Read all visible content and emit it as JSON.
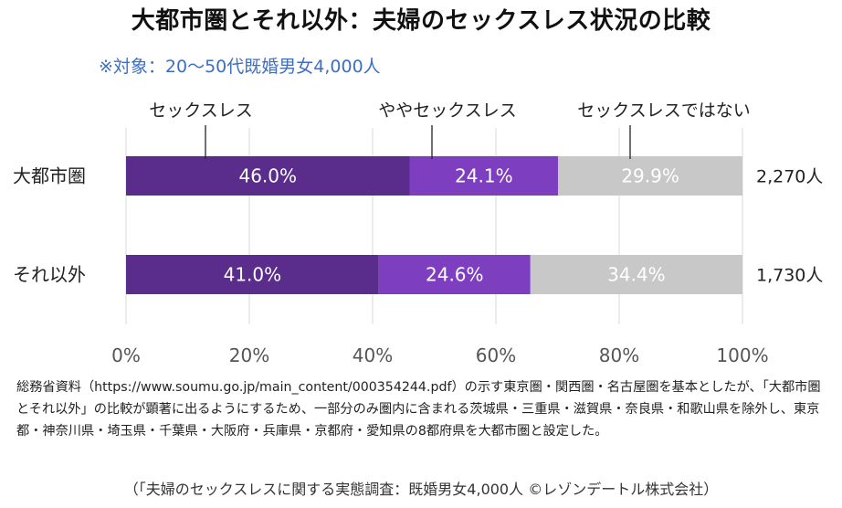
{
  "title": "大都市圏とそれ以外：夫婦のセックスレス状況の比較",
  "subtitle": "※対象：20～50代既婚男女4,000人",
  "chart_data": {
    "type": "bar",
    "orientation": "horizontal",
    "stacked": true,
    "title": "大都市圏とそれ以外：夫婦のセックスレス状況の比較",
    "categories": [
      "大都市圏",
      "それ以外"
    ],
    "totals": [
      "2,270人",
      "1,730人"
    ],
    "series": [
      {
        "name": "セックスレス",
        "values": [
          46.0,
          41.0
        ],
        "labels": [
          "46.0%",
          "41.0%"
        ],
        "color": "#5a2d8c"
      },
      {
        "name": "ややセックスレス",
        "values": [
          24.1,
          24.6
        ],
        "labels": [
          "24.1%",
          "24.6%"
        ],
        "color": "#7d3fc0"
      },
      {
        "name": "セックスレスではない",
        "values": [
          29.9,
          34.4
        ],
        "labels": [
          "29.9%",
          "34.4%"
        ],
        "color": "#c8c8c8"
      }
    ],
    "xlim": [
      0,
      100
    ],
    "xticks": [
      "0%",
      "20%",
      "40%",
      "60%",
      "80%",
      "100%"
    ],
    "grid": true,
    "legend": "top"
  },
  "footnote": "総務省資料（https://www.soumu.go.jp/main_content/000354244.pdf）の示す東京圏・関西圏・名古屋圏を基本としたが、「大都市圏とそれ以外」の比較が顕著に出るようにするため、一部分のみ圏内に含まれる茨城県・三重県・滋賀県・奈良県・和歌山県を除外し、東京都・神奈川県・埼玉県・千葉県・大阪府・兵庫県・京都府・愛知県の8都府県を大都市圏と設定した。",
  "source": "（「夫婦のセックスレスに関する実態調査：既婚男女4,000人 ©レゾンデートル株式会社）"
}
